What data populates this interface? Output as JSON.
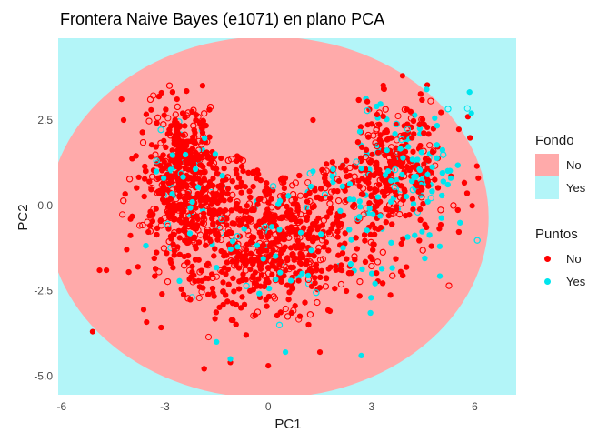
{
  "chart_data": {
    "type": "scatter",
    "title": "Frontera Naive Bayes (e1071) en plano PCA",
    "xlabel": "PC1",
    "ylabel": "PC2",
    "xlim": [
      -6.1,
      7.2
    ],
    "ylim": [
      -5.55,
      4.9
    ],
    "x_ticks": [
      -6,
      -3,
      0,
      3,
      6
    ],
    "x_tick_labels": [
      "-6",
      "-3",
      "0",
      "3",
      "6"
    ],
    "y_ticks": [
      2.5,
      0,
      -2.5,
      -5
    ],
    "y_tick_labels": [
      "2.5",
      "0.0",
      "-2.5",
      "-5.0"
    ],
    "grid": false,
    "background": {
      "legend_title": "Fondo",
      "regions": [
        {
          "name": "No",
          "color": "#ffaaaa"
        },
        {
          "name": "Yes",
          "color": "#b3f5f8"
        }
      ],
      "boundary": {
        "type": "ellipse",
        "center": [
          0.0,
          -0.35
        ],
        "radii": [
          6.4,
          5.3
        ],
        "inside": "No",
        "outside": "Yes"
      }
    },
    "points_legend_title": "Puntos",
    "series": [
      {
        "name": "No",
        "color": "#ff0000",
        "count_approx": 2800
      },
      {
        "name": "Yes",
        "color": "#00e5ee",
        "count_approx": 350
      }
    ],
    "outliers": {
      "No": [
        [
          -5.1,
          -3.7
        ],
        [
          -4.7,
          -1.9
        ],
        [
          -4.0,
          -0.4
        ],
        [
          -3.1,
          3.3
        ],
        [
          -1.1,
          -4.6
        ],
        [
          0.0,
          -4.7
        ],
        [
          6.1,
          0.8
        ],
        [
          5.8,
          2.6
        ],
        [
          3.9,
          3.8
        ],
        [
          -4.2,
          2.5
        ],
        [
          -3.4,
          2.8
        ],
        [
          -4.9,
          -1.9
        ],
        [
          1.5,
          -4.3
        ],
        [
          1.3,
          2.5
        ]
      ],
      "Yes": [
        [
          2.7,
          -4.4
        ],
        [
          -1.5,
          -4.0
        ],
        [
          1.3,
          1.0
        ],
        [
          5.3,
          0.8
        ],
        [
          4.6,
          3.4
        ],
        [
          5.9,
          2.7
        ],
        [
          -1.1,
          -4.5
        ],
        [
          0.5,
          -4.3
        ]
      ]
    }
  },
  "legend": {
    "fondo_title": "Fondo",
    "fondo_items": [
      {
        "label": "No",
        "color": "#ffaaaa"
      },
      {
        "label": "Yes",
        "color": "#b3f5f8"
      }
    ],
    "puntos_title": "Puntos",
    "puntos_items": [
      {
        "label": "No",
        "color": "#ff0000"
      },
      {
        "label": "Yes",
        "color": "#00e5ee"
      }
    ]
  }
}
